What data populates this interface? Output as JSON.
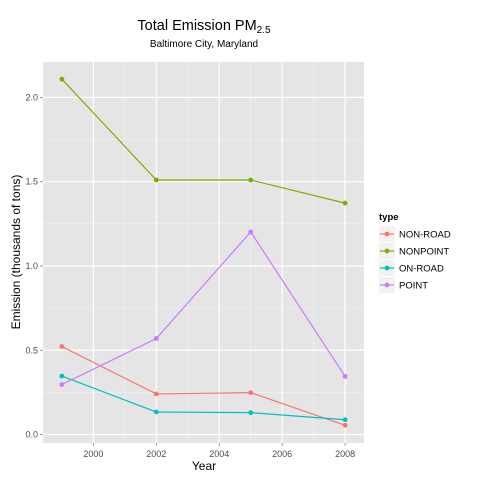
{
  "chart_data": {
    "type": "line",
    "title": "Total Emission PM",
    "title_subscript": "2.5",
    "subtitle": "Baltimore City, Maryland",
    "xlabel": "Year",
    "ylabel": "Emission (thousands of tons)",
    "xlim": [
      1998.4,
      2008.6
    ],
    "ylim": [
      -0.05,
      2.21
    ],
    "x_ticks": [
      2000,
      2002,
      2004,
      2006,
      2008
    ],
    "y_ticks": [
      0.0,
      0.5,
      1.0,
      1.5,
      2.0
    ],
    "x_tick_labels": [
      "2000",
      "2002",
      "2004",
      "2006",
      "2008"
    ],
    "y_tick_labels": [
      "0.0",
      "0.5",
      "1.0",
      "1.5",
      "2.0"
    ],
    "grid": true,
    "background_color": "#e5e5e5",
    "legend_title": "type",
    "legend_position": "right",
    "x": [
      1999,
      2002,
      2005,
      2008
    ],
    "series": [
      {
        "name": "NON-ROAD",
        "color": "#f8766d",
        "values": [
          0.522,
          0.241,
          0.249,
          0.055
        ]
      },
      {
        "name": "NONPOINT",
        "color": "#7cae00",
        "values": [
          2.108,
          1.51,
          1.51,
          1.373
        ]
      },
      {
        "name": "ON-ROAD",
        "color": "#00bfc4",
        "values": [
          0.347,
          0.134,
          0.13,
          0.088
        ]
      },
      {
        "name": "POINT",
        "color": "#c77cff",
        "values": [
          0.297,
          0.57,
          1.202,
          0.345
        ]
      }
    ]
  }
}
